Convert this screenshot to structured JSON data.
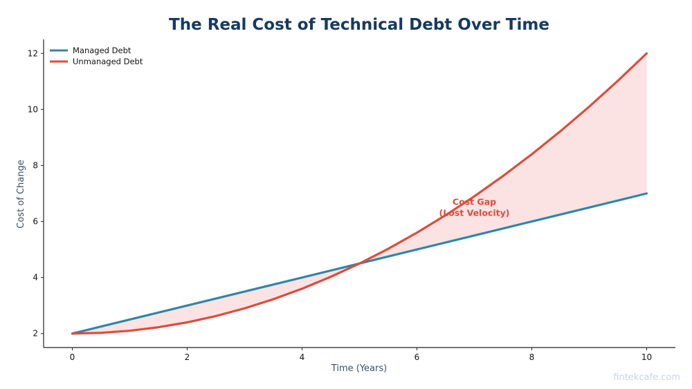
{
  "chart_data": {
    "type": "line",
    "title": "The Real Cost of Technical Debt Over Time",
    "xlabel": "Time (Years)",
    "ylabel": "Cost of Change",
    "xlim": [
      -0.5,
      10.5
    ],
    "ylim": [
      1.5,
      12.5
    ],
    "x_ticks": [
      0,
      2,
      4,
      6,
      8,
      10
    ],
    "y_ticks": [
      2,
      4,
      6,
      8,
      10,
      12
    ],
    "x": [
      0,
      0.5,
      1,
      1.5,
      2,
      2.5,
      3,
      3.5,
      4,
      4.5,
      5,
      5.5,
      6,
      6.5,
      7,
      7.5,
      8,
      8.5,
      9,
      9.5,
      10
    ],
    "series": [
      {
        "name": "Managed Debt",
        "color": "#2e86ab",
        "values": [
          2.0,
          2.25,
          2.5,
          2.75,
          3.0,
          3.25,
          3.5,
          3.75,
          4.0,
          4.25,
          4.5,
          4.75,
          5.0,
          5.25,
          5.5,
          5.75,
          6.0,
          6.25,
          6.5,
          6.75,
          7.0
        ]
      },
      {
        "name": "Unmanaged Debt",
        "color": "#e04a3a",
        "values": [
          2.0,
          2.025,
          2.1,
          2.225,
          2.4,
          2.625,
          2.9,
          3.225,
          3.6,
          4.025,
          4.5,
          5.025,
          5.6,
          6.225,
          6.9,
          7.625,
          8.4,
          9.225,
          10.1,
          11.025,
          12.0
        ]
      }
    ],
    "fill_between": {
      "color": "#f8c8c8",
      "opacity": 0.5
    },
    "legend_position": "top-left",
    "grid": false,
    "annotation": {
      "lines": [
        "Cost Gap",
        "(Lost Velocity)"
      ],
      "x": 7,
      "y": 6.5,
      "color": "#e04a3a"
    }
  },
  "watermark": "fintekcafe.com"
}
